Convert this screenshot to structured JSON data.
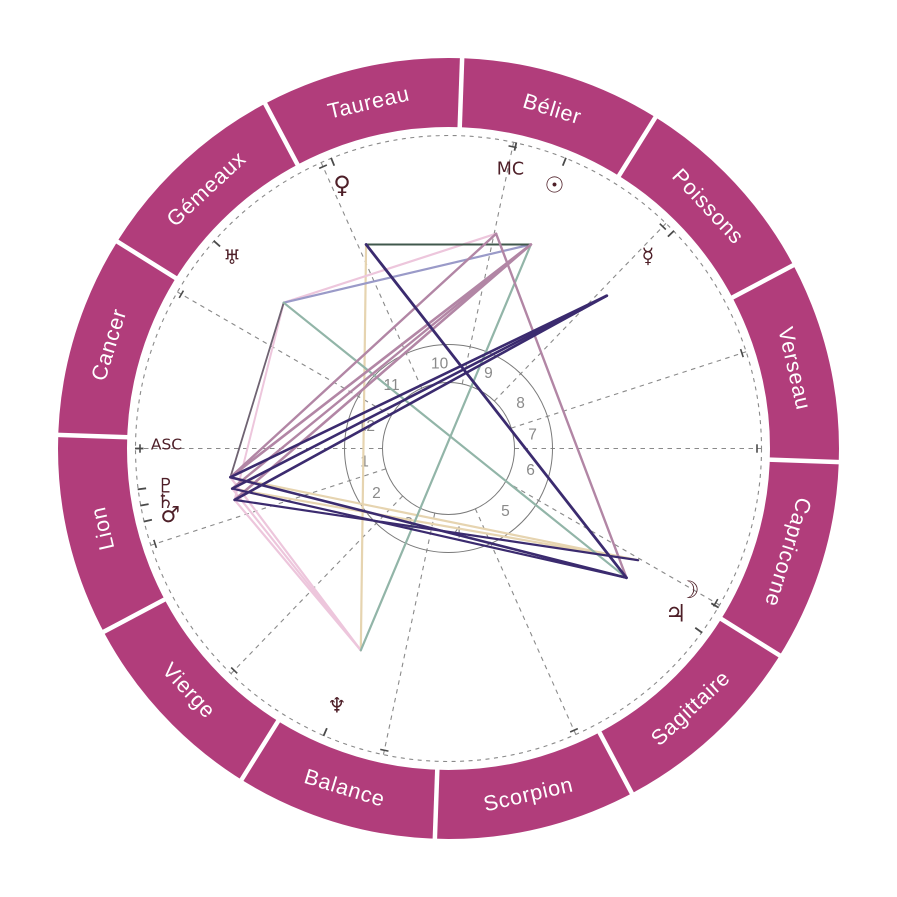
{
  "chart": {
    "kind": "astrology-natal-wheel",
    "language": "fr",
    "colors": {
      "background": "#FFFFFF",
      "ring": "#B13D7B",
      "ring_label": "#FFFFFF",
      "glyph": "#4E1F28",
      "grid": "#8A8A8A",
      "tick": "#4A4A4A",
      "house_number": "#8A8A8A"
    },
    "aspect_colors": {
      "indigo": "#3B2B6F",
      "mauve": "#B286A5",
      "pink": "#EDC6DC",
      "slate": "#6F6372",
      "periwinkle": "#9A9AC8",
      "sage": "#92B5A8",
      "darkgreen": "#40584C",
      "tan": "#E6D4B0"
    },
    "signs": [
      {
        "key": "belier",
        "name": "Bélier",
        "start_deg": 58
      },
      {
        "key": "taureau",
        "name": "Taureau",
        "start_deg": 88
      },
      {
        "key": "gemeaux",
        "name": "Gémeaux",
        "start_deg": 118
      },
      {
        "key": "cancer",
        "name": "Cancer",
        "start_deg": 148
      },
      {
        "key": "lion",
        "name": "Lion",
        "start_deg": 178
      },
      {
        "key": "vierge",
        "name": "Vierge",
        "start_deg": 208
      },
      {
        "key": "balance",
        "name": "Balance",
        "start_deg": 238
      },
      {
        "key": "scorpion",
        "name": "Scorpion",
        "start_deg": 268
      },
      {
        "key": "sagittaire",
        "name": "Sagittaire",
        "start_deg": 298
      },
      {
        "key": "capricorne",
        "name": "Capricorne",
        "start_deg": 328
      },
      {
        "key": "verseau",
        "name": "Verseau",
        "start_deg": 358
      },
      {
        "key": "poissons",
        "name": "Poissons",
        "start_deg": 28
      }
    ],
    "houses": {
      "cusps_deg": [
        180,
        198,
        226,
        258,
        294,
        330,
        0,
        18,
        46,
        78,
        114,
        150
      ],
      "numbers": [
        "1",
        "2",
        "3",
        "4",
        "5",
        "6",
        "7",
        "8",
        "9",
        "10",
        "11",
        "12"
      ]
    },
    "axes": {
      "asc": {
        "label": "ASC",
        "deg": 179.2,
        "sign": "Lion"
      },
      "mc": {
        "label": "MC",
        "deg": 77.5,
        "sign": "Bélier"
      }
    },
    "planets": [
      {
        "key": "sun",
        "name": "Soleil",
        "glyph": "☉",
        "deg": 68,
        "r": 283,
        "size": 22,
        "sign": "Bélier"
      },
      {
        "key": "moon",
        "name": "Lune",
        "glyph": "☽",
        "deg": 329.5,
        "r": 279,
        "size": 24,
        "sign": "Capricorne"
      },
      {
        "key": "mercury",
        "name": "Mercure",
        "glyph": "☿",
        "deg": 44,
        "r": 277,
        "size": 21,
        "sign": "Poissons"
      },
      {
        "key": "venus",
        "name": "Vénus",
        "glyph": "♀",
        "deg": 112,
        "r": 284,
        "size": 24,
        "sign": "Taureau"
      },
      {
        "key": "mars",
        "name": "Mars",
        "glyph": "♂",
        "deg": 193.5,
        "r": 286,
        "size": 22,
        "sign": "Lion"
      },
      {
        "key": "jupiter",
        "name": "Jupiter",
        "glyph": "♃",
        "deg": 324,
        "r": 281,
        "size": 24,
        "sign": "Sagittaire"
      },
      {
        "key": "saturn",
        "name": "Saturne",
        "glyph": "♄",
        "deg": 190.5,
        "r": 288,
        "size": 20,
        "sign": "Lion"
      },
      {
        "key": "uranus",
        "name": "Uranus",
        "glyph": "♅",
        "deg": 138.5,
        "r": 289,
        "size": 20,
        "sign": "Gémeaux"
      },
      {
        "key": "neptune",
        "name": "Neptune",
        "glyph": "♆",
        "deg": 246.5,
        "r": 280,
        "size": 21,
        "sign": "Balance"
      },
      {
        "key": "pluto",
        "name": "Pluton",
        "glyph": "♇",
        "deg": 187.5,
        "r": 285,
        "size": 20,
        "sign": "Lion"
      }
    ],
    "aspects": [
      {
        "from": "pluto",
        "to": "mercury",
        "color": "indigo",
        "w": 2.6
      },
      {
        "from": "saturn",
        "to": "mercury",
        "color": "indigo",
        "w": 2.6
      },
      {
        "from": "mars",
        "to": "mercury",
        "color": "indigo",
        "w": 2.6
      },
      {
        "from": "pluto",
        "to": "jupiter",
        "color": "indigo",
        "w": 2.6
      },
      {
        "from": "saturn",
        "to": "jupiter",
        "color": "indigo",
        "w": 2.2
      },
      {
        "from": "mars",
        "to": "moon",
        "color": "indigo",
        "w": 2.2
      },
      {
        "from": "venus",
        "to": "jupiter",
        "color": "indigo",
        "w": 2.8
      },
      {
        "from": "pluto",
        "to": "sun",
        "color": "mauve",
        "w": 2.6
      },
      {
        "from": "saturn",
        "to": "sun",
        "color": "mauve",
        "w": 2.4
      },
      {
        "from": "mars",
        "to": "sun",
        "color": "mauve",
        "w": 2.6
      },
      {
        "from": "pluto",
        "to": "mc",
        "color": "mauve",
        "w": 2.4
      },
      {
        "from": "jupiter",
        "to": "mc",
        "color": "mauve",
        "w": 2.4
      },
      {
        "from": "uranus",
        "to": "mc",
        "color": "pink",
        "w": 2.2
      },
      {
        "from": "uranus",
        "to": "mars",
        "color": "pink",
        "w": 2.0
      },
      {
        "from": "pluto",
        "to": "neptune",
        "color": "pink",
        "w": 2.2
      },
      {
        "from": "saturn",
        "to": "neptune",
        "color": "pink",
        "w": 2.2
      },
      {
        "from": "mars",
        "to": "neptune",
        "color": "pink",
        "w": 2.2
      },
      {
        "from": "uranus",
        "to": "pluto",
        "color": "slate",
        "w": 1.8
      },
      {
        "from": "uranus",
        "to": "sun",
        "color": "periwinkle",
        "w": 2.2
      },
      {
        "from": "sun",
        "to": "neptune",
        "color": "sage",
        "w": 2.2
      },
      {
        "from": "uranus",
        "to": "jupiter",
        "color": "sage",
        "w": 2.2
      },
      {
        "from": "sun",
        "to": "venus",
        "color": "darkgreen",
        "w": 2.0
      },
      {
        "from": "venus",
        "to": "neptune",
        "color": "tan",
        "w": 2.2
      },
      {
        "from": "pluto",
        "to": "moon",
        "color": "tan",
        "w": 2.2
      },
      {
        "from": "saturn",
        "to": "moon",
        "color": "tan",
        "w": 2.2
      }
    ]
  }
}
